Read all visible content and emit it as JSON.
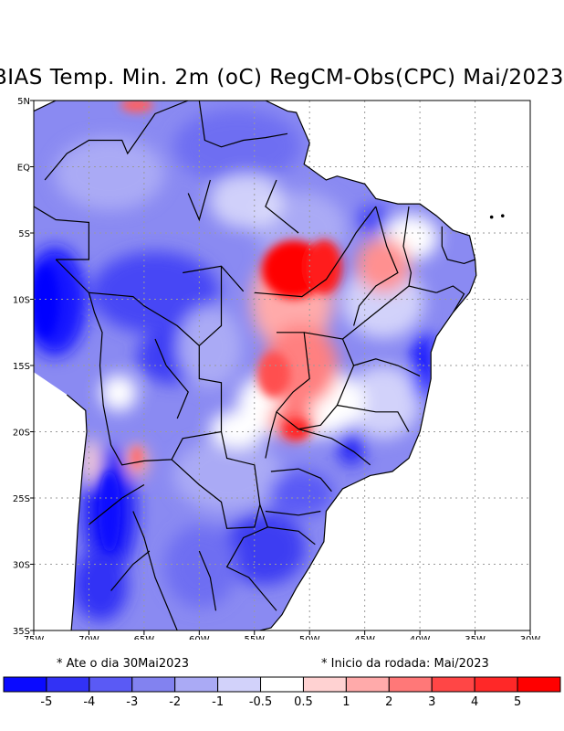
{
  "title": "BIAS Temp. Min. 2m (oC) RegCM-Obs(CPC) Mai/2023",
  "map": {
    "x_ticks": [
      "75W",
      "70W",
      "65W",
      "60W",
      "55W",
      "50W",
      "45W",
      "40W",
      "35W",
      "30W"
    ],
    "y_ticks": [
      "5N",
      "EQ",
      "5S",
      "10S",
      "15S",
      "20S",
      "25S",
      "30S",
      "35S"
    ],
    "lon_range": [
      -75,
      -30
    ],
    "lat_range": [
      -35,
      5
    ],
    "grid": "dotted",
    "warm_anomalies": [
      {
        "lon": -50.5,
        "lat": -8.5,
        "bias": 5.5
      },
      {
        "lon": -49.5,
        "lat": -14.5,
        "bias": 3.0
      },
      {
        "lon": -47.5,
        "lat": -17.0,
        "bias": 2.5
      },
      {
        "lon": -51.0,
        "lat": -20.0,
        "bias": 4.5
      },
      {
        "lon": -46.0,
        "lat": -9.5,
        "bias": 2.5
      },
      {
        "lon": -43.0,
        "lat": -4.5,
        "bias": 1.5
      },
      {
        "lon": -65.5,
        "lat": -21.5,
        "bias": 3.0
      },
      {
        "lon": -69.5,
        "lat": -21.0,
        "bias": 1.0
      },
      {
        "lon": -65.5,
        "lat": 4.5,
        "bias": 2.0
      }
    ],
    "cold_anomalies": [
      {
        "lon": -73.0,
        "lat": -10.5,
        "bias": -5.0
      },
      {
        "lon": -65.0,
        "lat": -12.5,
        "bias": -4.0
      },
      {
        "lon": -67.5,
        "lat": -26.0,
        "bias": -5.0
      },
      {
        "lon": -40.5,
        "lat": -15.0,
        "bias": -5.0
      },
      {
        "lon": -55.0,
        "lat": -31.0,
        "bias": -3.5
      },
      {
        "lon": -44.5,
        "lat": -21.5,
        "bias": -4.0
      },
      {
        "lon": -68.0,
        "lat": -32.0,
        "bias": -4.0
      }
    ]
  },
  "notes": {
    "left": "* Ate o dia 30Mai2023",
    "right": "* Inicio da rodada: Mai/2023"
  },
  "legend": {
    "labels": [
      "-5",
      "-4",
      "-3",
      "-2",
      "-1",
      "-0.5",
      "0.5",
      "1",
      "2",
      "3",
      "4",
      "5"
    ],
    "colors": [
      "#0a0aff",
      "#3232f5",
      "#5a5af5",
      "#8282f0",
      "#aaaaf5",
      "#d2d2fa",
      "#ffffff",
      "#ffd2d2",
      "#ffaaaa",
      "#ff7878",
      "#ff4646",
      "#ff2828",
      "#ff0000"
    ]
  }
}
